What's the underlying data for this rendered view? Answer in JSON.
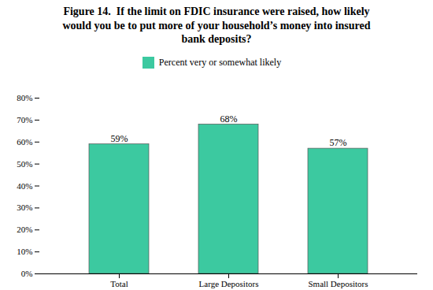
{
  "chart_data": {
    "type": "bar",
    "title": "Figure 14.  If the limit on FDIC insurance were raised, how likely\nwould you be to put more of your household’s money into insured\nbank deposits?",
    "categories": [
      "Total",
      "Large Depositors",
      "Small Depositors"
    ],
    "series": [
      {
        "name": "Percent very or somewhat likely",
        "color": "#3CC9A0",
        "values": [
          59,
          68,
          57
        ],
        "value_labels": [
          "59%",
          "68%",
          "57%"
        ]
      }
    ],
    "data_labels": true,
    "ylim": [
      0,
      80
    ],
    "yticks": [
      {
        "value": 0,
        "label": "0%"
      },
      {
        "value": 10,
        "label": "10%"
      },
      {
        "value": 20,
        "label": "20%"
      },
      {
        "value": 30,
        "label": "30%"
      },
      {
        "value": 40,
        "label": "40%"
      },
      {
        "value": 50,
        "label": "50%"
      },
      {
        "value": 60,
        "label": "60%"
      },
      {
        "value": 70,
        "label": "70%"
      },
      {
        "value": 80,
        "label": "80%"
      }
    ],
    "grid": false,
    "legend": "top"
  }
}
